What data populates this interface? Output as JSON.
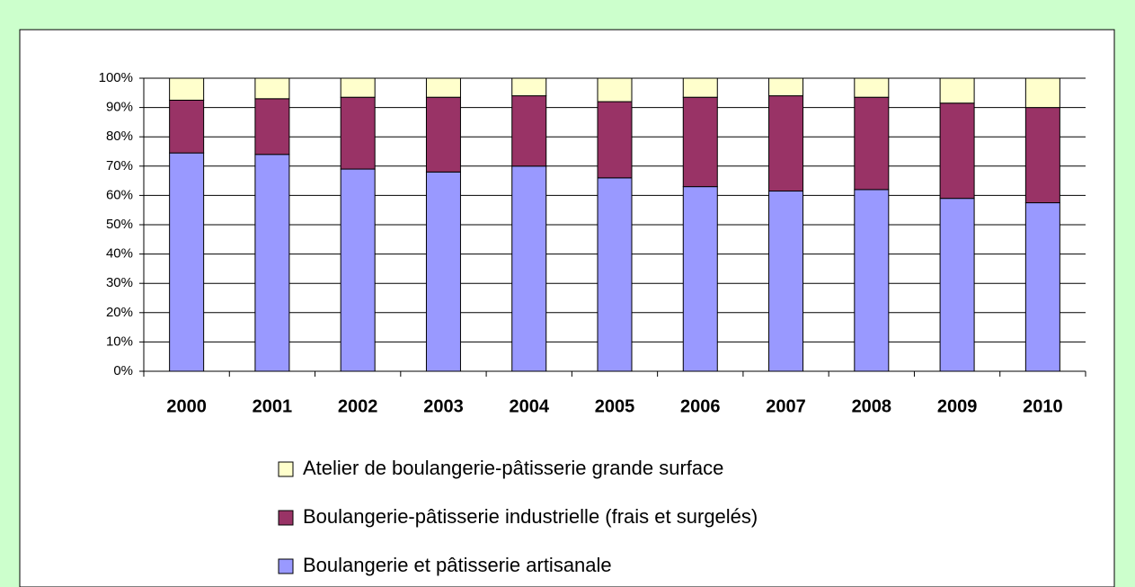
{
  "chart_data": {
    "type": "stacked_bar",
    "categories": [
      "2000",
      "2001",
      "2002",
      "2003",
      "2004",
      "2005",
      "2006",
      "2007",
      "2008",
      "2009",
      "2010"
    ],
    "series": [
      {
        "name": "Boulangerie et pâtisserie artisanale",
        "color": "#9999ff",
        "values": [
          74.5,
          74,
          69,
          68,
          70,
          66,
          63,
          61.5,
          62,
          59,
          57.5
        ]
      },
      {
        "name": "Boulangerie-pâtisserie industrielle (frais et surgelés)",
        "color": "#993366",
        "values": [
          18,
          19,
          24.5,
          25.5,
          24,
          26,
          30.5,
          32.5,
          31.5,
          32.5,
          32.5
        ]
      },
      {
        "name": "Atelier de boulangerie-pâtisserie grande surface",
        "color": "#ffffcc",
        "values": [
          7.5,
          7,
          6.5,
          6.5,
          6,
          8,
          6.5,
          6,
          6.5,
          8.5,
          10
        ]
      }
    ],
    "ylim": [
      0,
      100
    ],
    "yticks": [
      {
        "value": 0,
        "label": "0%"
      },
      {
        "value": 10,
        "label": "10%"
      },
      {
        "value": 20,
        "label": "20%"
      },
      {
        "value": 30,
        "label": "30%"
      },
      {
        "value": 40,
        "label": "40%"
      },
      {
        "value": 50,
        "label": "50%"
      },
      {
        "value": 60,
        "label": "60%"
      },
      {
        "value": 70,
        "label": "70%"
      },
      {
        "value": 80,
        "label": "80%"
      },
      {
        "value": 90,
        "label": "90%"
      },
      {
        "value": 100,
        "label": "100%"
      }
    ],
    "grid": true,
    "legend": "bottom"
  }
}
